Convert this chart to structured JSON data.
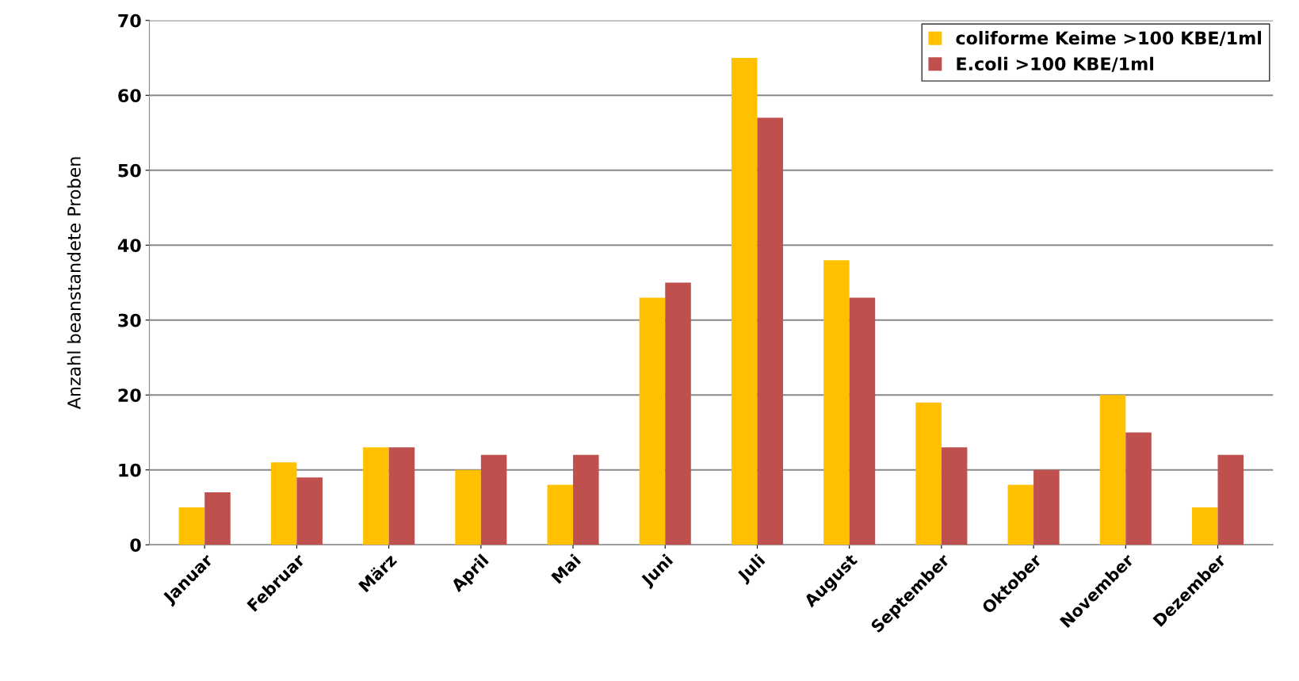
{
  "chart_data": {
    "type": "bar",
    "ylabel": "Anzahl beanstandete Proben",
    "categories": [
      "Januar",
      "Februar",
      "März",
      "April",
      "Mai",
      "Juni",
      "Juli",
      "August",
      "September",
      "Oktober",
      "November",
      "Dezember"
    ],
    "series": [
      {
        "name": "coliforme Keime >100 KBE/1ml",
        "color": "#ffc000",
        "values": [
          5,
          11,
          13,
          10,
          8,
          33,
          65,
          38,
          19,
          8,
          20,
          5
        ]
      },
      {
        "name": "E.coli >100 KBE/1ml",
        "color": "#c0504d",
        "values": [
          7,
          9,
          13,
          12,
          12,
          35,
          57,
          33,
          13,
          10,
          15,
          12
        ]
      }
    ],
    "ylim": [
      0,
      70
    ],
    "yticks": [
      0,
      10,
      20,
      30,
      40,
      50,
      60,
      70
    ],
    "grid": "y",
    "legend": "top right"
  }
}
